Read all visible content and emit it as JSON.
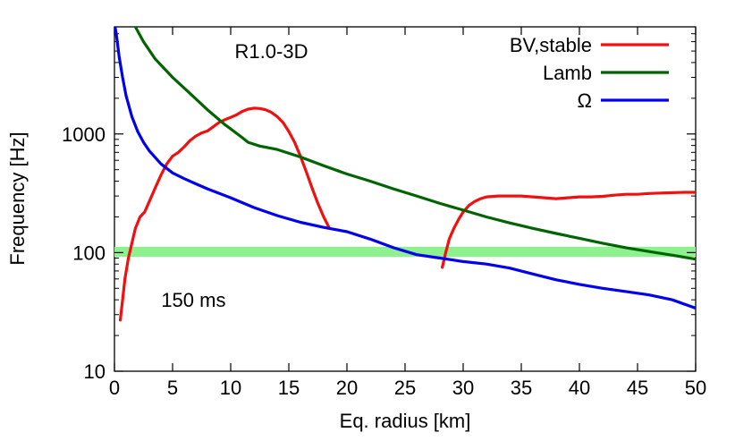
{
  "chart_data": {
    "type": "line",
    "title": "",
    "xlabel": "Eq. radius [km]",
    "ylabel": "Frequency [Hz]",
    "xlim": [
      0,
      50
    ],
    "ylim": [
      10,
      8000
    ],
    "yscale": "log",
    "grid": false,
    "legend_position": "top-right",
    "x_ticks": [
      0,
      5,
      10,
      15,
      20,
      25,
      30,
      35,
      40,
      45,
      50
    ],
    "y_ticks": [
      10,
      100,
      1000
    ],
    "annotations": [
      {
        "text": "R1.0-3D",
        "x": 13.5,
        "y": 5000
      },
      {
        "text": "150 ms",
        "x": 6.8,
        "y": 40
      }
    ],
    "band": {
      "y_low": 92,
      "y_high": 112,
      "color": "#8ff08f"
    },
    "series": [
      {
        "name": "BV,stable",
        "color": "#f01010",
        "segments": [
          [
            [
              0.5,
              27
            ],
            [
              0.7,
              40
            ],
            [
              0.9,
              60
            ],
            [
              1.2,
              90
            ],
            [
              1.5,
              120
            ],
            [
              1.8,
              160
            ],
            [
              2.2,
              200
            ],
            [
              2.6,
              220
            ],
            [
              3.0,
              270
            ],
            [
              3.5,
              350
            ],
            [
              4.0,
              450
            ],
            [
              4.5,
              560
            ],
            [
              5.0,
              650
            ],
            [
              5.5,
              700
            ],
            [
              6.0,
              780
            ],
            [
              6.5,
              880
            ],
            [
              7.0,
              960
            ],
            [
              7.5,
              1020
            ],
            [
              8.0,
              1060
            ],
            [
              8.5,
              1150
            ],
            [
              9.0,
              1250
            ],
            [
              9.5,
              1320
            ],
            [
              10.0,
              1380
            ],
            [
              10.5,
              1450
            ],
            [
              11.0,
              1550
            ],
            [
              11.5,
              1620
            ],
            [
              12.0,
              1650
            ],
            [
              12.5,
              1640
            ],
            [
              13.0,
              1600
            ],
            [
              13.5,
              1520
            ],
            [
              14.0,
              1400
            ],
            [
              14.5,
              1250
            ],
            [
              15.0,
              1050
            ],
            [
              15.5,
              850
            ],
            [
              16.0,
              650
            ],
            [
              16.5,
              480
            ],
            [
              17.0,
              350
            ],
            [
              17.5,
              260
            ],
            [
              18.0,
              200
            ],
            [
              18.5,
              160
            ]
          ],
          [
            [
              28.2,
              75
            ],
            [
              28.5,
              100
            ],
            [
              28.8,
              130
            ],
            [
              29.2,
              160
            ],
            [
              29.6,
              190
            ],
            [
              30.0,
              220
            ],
            [
              30.5,
              250
            ],
            [
              31.0,
              270
            ],
            [
              31.5,
              285
            ],
            [
              32.0,
              295
            ],
            [
              33.0,
              300
            ],
            [
              34.0,
              300
            ],
            [
              35.0,
              300
            ],
            [
              36.0,
              295
            ],
            [
              37.0,
              290
            ],
            [
              38.0,
              285
            ],
            [
              39.0,
              290
            ],
            [
              40.0,
              295
            ],
            [
              41.0,
              295
            ],
            [
              42.0,
              298
            ],
            [
              43.0,
              305
            ],
            [
              44.0,
              310
            ],
            [
              45.0,
              310
            ],
            [
              46.0,
              315
            ],
            [
              47.0,
              318
            ],
            [
              48.0,
              320
            ],
            [
              49.0,
              322
            ],
            [
              50.0,
              322
            ]
          ]
        ]
      },
      {
        "name": "Lamb",
        "color": "#006400",
        "segments": [
          [
            [
              1.8,
              8000
            ],
            [
              2.5,
              6000
            ],
            [
              3.5,
              4300
            ],
            [
              5.0,
              3000
            ],
            [
              6.5,
              2200
            ],
            [
              8.0,
              1600
            ],
            [
              9.5,
              1200
            ],
            [
              11.0,
              930
            ],
            [
              11.5,
              850
            ],
            [
              12.5,
              790
            ],
            [
              14.0,
              740
            ],
            [
              16.0,
              640
            ],
            [
              18.0,
              540
            ],
            [
              20.0,
              460
            ],
            [
              22.0,
              400
            ],
            [
              24.0,
              345
            ],
            [
              26.0,
              300
            ],
            [
              28.0,
              260
            ],
            [
              30.0,
              228
            ],
            [
              32.0,
              200
            ],
            [
              34.0,
              178
            ],
            [
              36.0,
              160
            ],
            [
              38.0,
              145
            ],
            [
              40.0,
              132
            ],
            [
              42.0,
              120
            ],
            [
              44.0,
              110
            ],
            [
              46.0,
              102
            ],
            [
              48.0,
              95
            ],
            [
              50.0,
              88
            ]
          ]
        ]
      },
      {
        "name": "Ω",
        "color": "#0000f0",
        "segments": [
          [
            [
              0.05,
              8000
            ],
            [
              0.2,
              6500
            ],
            [
              0.4,
              4500
            ],
            [
              0.7,
              3000
            ],
            [
              1.0,
              2100
            ],
            [
              1.5,
              1400
            ],
            [
              2.0,
              1050
            ],
            [
              2.5,
              850
            ],
            [
              3.0,
              720
            ],
            [
              4.0,
              560
            ],
            [
              5.0,
              470
            ],
            [
              6.0,
              420
            ],
            [
              7.0,
              380
            ],
            [
              8.0,
              345
            ],
            [
              10.0,
              290
            ],
            [
              12.0,
              240
            ],
            [
              14.0,
              205
            ],
            [
              16.0,
              180
            ],
            [
              18.0,
              163
            ],
            [
              20.0,
              150
            ],
            [
              22.0,
              130
            ],
            [
              24.0,
              110
            ],
            [
              26.0,
              96
            ],
            [
              28.0,
              90
            ],
            [
              30.0,
              84
            ],
            [
              32.0,
              80
            ],
            [
              34.0,
              74
            ],
            [
              36.0,
              66
            ],
            [
              38.0,
              59
            ],
            [
              40.0,
              54
            ],
            [
              42.0,
              50
            ],
            [
              44.0,
              47
            ],
            [
              46.0,
              44
            ],
            [
              48.0,
              40
            ],
            [
              50.0,
              34
            ]
          ]
        ]
      }
    ]
  }
}
